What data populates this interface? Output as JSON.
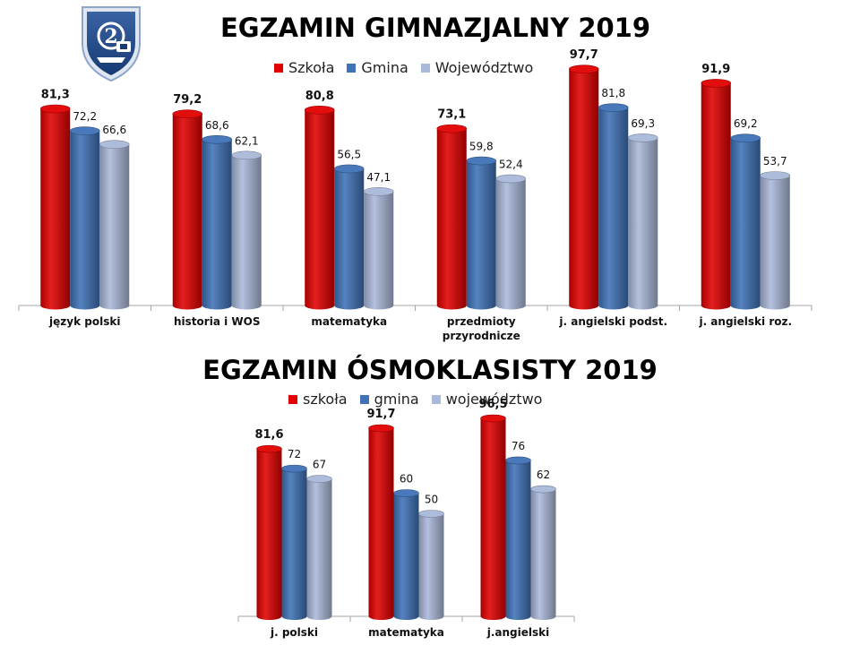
{
  "colors": {
    "school": "#e00000",
    "commune": "#3f72b6",
    "province": "#aab8d9"
  },
  "logo": {
    "icon": "school-crest-icon",
    "text": "2"
  },
  "chart_data": [
    {
      "type": "bar",
      "title": "EGZAMIN GIMNAZJALNY 2019",
      "categories": [
        "język polski",
        "historia i WOS",
        "matematyka",
        "przedmioty przyrodnicze",
        "j. angielski podst.",
        "j. angielski roz."
      ],
      "series": [
        {
          "name": "Szkoła",
          "values": [
            81.3,
            79.2,
            80.8,
            73.1,
            97.7,
            91.9
          ]
        },
        {
          "name": "Gmina",
          "values": [
            72.2,
            68.6,
            56.5,
            59.8,
            81.8,
            69.2
          ]
        },
        {
          "name": "Województwo",
          "values": [
            66.6,
            62.1,
            47.1,
            52.4,
            69.3,
            53.7
          ]
        }
      ],
      "value_labels": [
        [
          "81,3",
          "79,2",
          "80,8",
          "73,1",
          "97,7",
          "91,9"
        ],
        [
          "72,2",
          "68,6",
          "56,5",
          "59,8",
          "81,8",
          "69,2"
        ],
        [
          "66,6",
          "62,1",
          "47,1",
          "52,4",
          "69,3",
          "53,7"
        ]
      ],
      "ylim": [
        0,
        100
      ],
      "legend_position": "top-center",
      "grid": false
    },
    {
      "type": "bar",
      "title": "EGZAMIN ÓSMOKLASISTY 2019",
      "categories": [
        "j. polski",
        "matematyka",
        "j.angielski"
      ],
      "series": [
        {
          "name": "szkoła",
          "values": [
            81.6,
            91.7,
            96.5
          ]
        },
        {
          "name": "gmina",
          "values": [
            72,
            60,
            76
          ]
        },
        {
          "name": "województwo",
          "values": [
            67,
            50,
            62
          ]
        }
      ],
      "value_labels": [
        [
          "81,6",
          "91,7",
          "96,5"
        ],
        [
          "72",
          "60",
          "76"
        ],
        [
          "67",
          "50",
          "62"
        ]
      ],
      "ylim": [
        0,
        100
      ],
      "legend_position": "top-center",
      "grid": false
    }
  ]
}
